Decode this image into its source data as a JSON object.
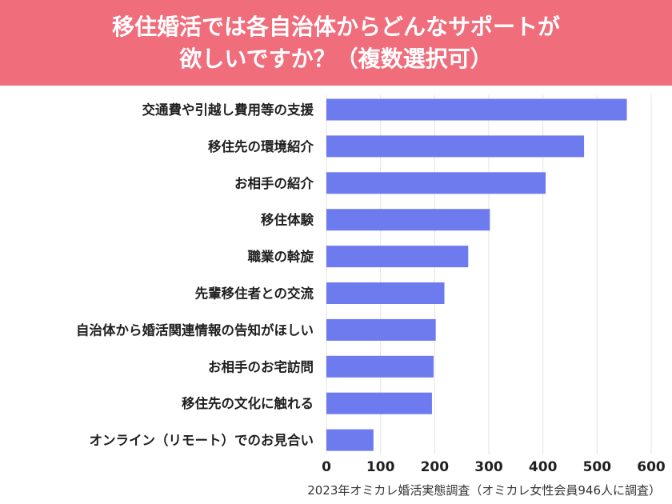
{
  "header": {
    "title": "移住婚活では各自治体からどんなサポートが\n欲しいですか？（複数選択可）",
    "background": "#f06d7c"
  },
  "footnote": "2023年オミカレ婚活実態調査（オミカレ女性会員946人に調査）",
  "chart_data": {
    "type": "bar",
    "orientation": "horizontal",
    "categories": [
      "交通費や引越し費用等の支援",
      "移住先の環境紹介",
      "お相手の紹介",
      "移住体験",
      "職業の斡旋",
      "先輩移住者との交流",
      "自治体から婚活関連情報の告知がほしい",
      "お相手のお宅訪問",
      "移住先の文化に触れる",
      "オンライン（リモート）でのお見合い"
    ],
    "values": [
      555,
      476,
      405,
      302,
      262,
      218,
      202,
      198,
      195,
      87
    ],
    "xlim": [
      0,
      600
    ],
    "xticks": [
      0,
      100,
      200,
      300,
      400,
      500,
      600
    ],
    "grid": true,
    "bar_color": "#6e7bef",
    "grid_color": "#e3e3e3"
  }
}
